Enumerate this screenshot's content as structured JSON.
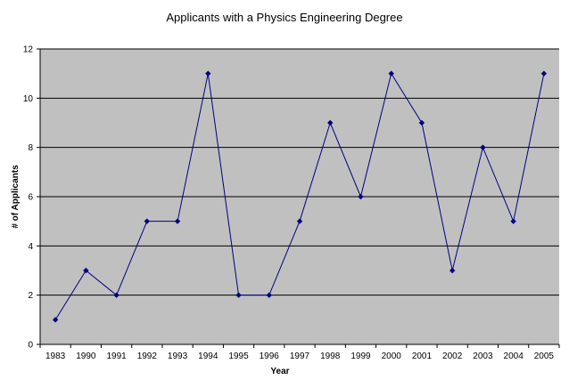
{
  "chart_data": {
    "type": "line",
    "title": "Applicants with a Physics Engineering Degree",
    "xlabel": "Year",
    "ylabel": "# of Applicants",
    "categories": [
      "1983",
      "1990",
      "1991",
      "1992",
      "1993",
      "1994",
      "1995",
      "1996",
      "1997",
      "1998",
      "1999",
      "2000",
      "2001",
      "2002",
      "2003",
      "2004",
      "2005"
    ],
    "series": [
      {
        "values": [
          1,
          3,
          2,
          5,
          5,
          11,
          2,
          2,
          5,
          9,
          6,
          11,
          9,
          3,
          8,
          5,
          11
        ]
      }
    ],
    "ylim": [
      0,
      12
    ],
    "yticks": [
      "0",
      "2",
      "4",
      "6",
      "8",
      "10",
      "12"
    ],
    "grid": true,
    "colors": {
      "plot_background": "#c0c0c0",
      "gridline": "#000000",
      "series_line": "#000080"
    }
  }
}
